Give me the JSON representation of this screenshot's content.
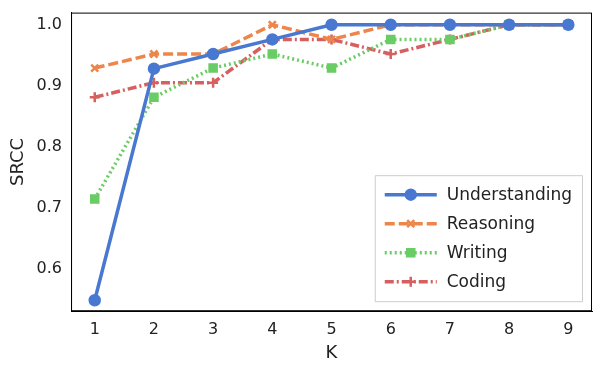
{
  "chart_data": {
    "type": "line",
    "x_label": "K",
    "y_label": "SRCC",
    "x": [
      1,
      2,
      3,
      4,
      5,
      6,
      7,
      8,
      9
    ],
    "xlim": [
      0.6,
      9.4
    ],
    "xticks": [
      1,
      2,
      3,
      4,
      5,
      6,
      7,
      8,
      9
    ],
    "ylim": [
      0.53,
      1.02
    ],
    "yticks": [
      0.6,
      0.7,
      0.8,
      0.9,
      {
        "value": 1,
        "label": "1.0"
      }
    ],
    "grid": false,
    "legend": "lower right",
    "series": [
      {
        "name": "Understanding",
        "color": "#4878d0",
        "marker": "circle",
        "line_style": "solid",
        "values": [
          0.548,
          0.928,
          0.952,
          0.976,
          1.0,
          1.0,
          1.0,
          1.0,
          1.0
        ]
      },
      {
        "name": "Reasoning",
        "color": "#ee854a",
        "marker": "x",
        "line_style": "dashed",
        "values": [
          0.929,
          0.952,
          0.952,
          1.0,
          0.976,
          1.0,
          1.0,
          1.0,
          1.0
        ]
      },
      {
        "name": "Writing",
        "color": "#6acc64",
        "marker": "square",
        "line_style": "dotted",
        "values": [
          0.714,
          0.881,
          0.929,
          0.952,
          0.929,
          0.976,
          0.976,
          1.0,
          1.0
        ]
      },
      {
        "name": "Coding",
        "color": "#d65f5f",
        "marker": "plus",
        "line_style": "dashdot",
        "values": [
          0.881,
          0.905,
          0.905,
          0.976,
          0.976,
          0.952,
          0.976,
          1.0,
          1.0
        ]
      }
    ]
  }
}
